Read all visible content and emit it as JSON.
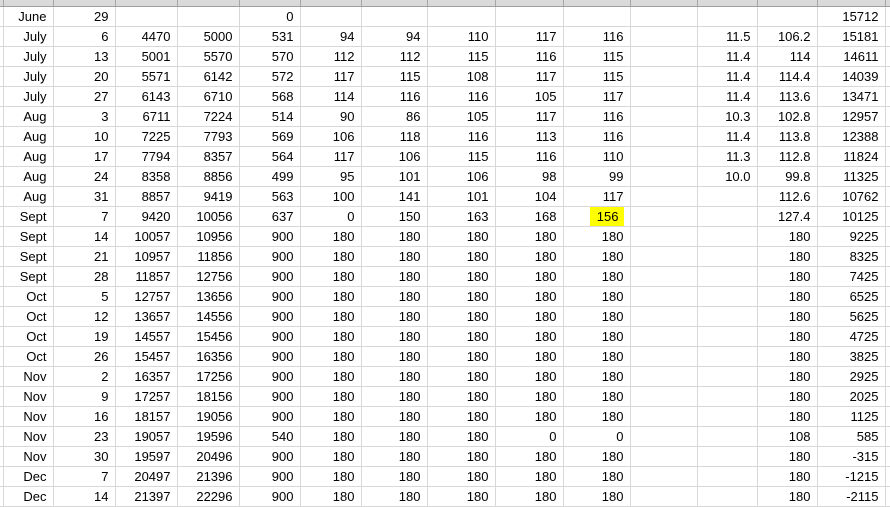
{
  "sheet": {
    "description": "spreadsheet-grid",
    "colors": {
      "background": "#ffffff",
      "gridline": "#d8d8d8",
      "text": "#000000",
      "highlight_fill": "#ffff00",
      "top_strip_fill": "#dadada",
      "top_strip_border": "#9e9e9e"
    },
    "highlight": {
      "row": 10,
      "col": 9,
      "value": "156"
    },
    "rows": [
      [
        "June",
        "29",
        "",
        "",
        "0",
        "",
        "",
        "",
        "",
        "",
        "",
        "",
        "",
        "15712"
      ],
      [
        "July",
        "6",
        "4470",
        "5000",
        "531",
        "94",
        "94",
        "110",
        "117",
        "116",
        "",
        "11.5",
        "106.2",
        "15181"
      ],
      [
        "July",
        "13",
        "5001",
        "5570",
        "570",
        "112",
        "112",
        "115",
        "116",
        "115",
        "",
        "11.4",
        "114",
        "14611"
      ],
      [
        "July",
        "20",
        "5571",
        "6142",
        "572",
        "117",
        "115",
        "108",
        "117",
        "115",
        "",
        "11.4",
        "114.4",
        "14039"
      ],
      [
        "July",
        "27",
        "6143",
        "6710",
        "568",
        "114",
        "116",
        "116",
        "105",
        "117",
        "",
        "11.4",
        "113.6",
        "13471"
      ],
      [
        "Aug",
        "3",
        "6711",
        "7224",
        "514",
        "90",
        "86",
        "105",
        "117",
        "116",
        "",
        "10.3",
        "102.8",
        "12957"
      ],
      [
        "Aug",
        "10",
        "7225",
        "7793",
        "569",
        "106",
        "118",
        "116",
        "113",
        "116",
        "",
        "11.4",
        "113.8",
        "12388"
      ],
      [
        "Aug",
        "17",
        "7794",
        "8357",
        "564",
        "117",
        "106",
        "115",
        "116",
        "110",
        "",
        "11.3",
        "112.8",
        "11824"
      ],
      [
        "Aug",
        "24",
        "8358",
        "8856",
        "499",
        "95",
        "101",
        "106",
        "98",
        "99",
        "",
        "10.0",
        "99.8",
        "11325"
      ],
      [
        "Aug",
        "31",
        "8857",
        "9419",
        "563",
        "100",
        "141",
        "101",
        "104",
        "117",
        "",
        "",
        "112.6",
        "10762"
      ],
      [
        "Sept",
        "7",
        "9420",
        "10056",
        "637",
        "0",
        "150",
        "163",
        "168",
        "156",
        "",
        "",
        "127.4",
        "10125"
      ],
      [
        "Sept",
        "14",
        "10057",
        "10956",
        "900",
        "180",
        "180",
        "180",
        "180",
        "180",
        "",
        "",
        "180",
        "9225"
      ],
      [
        "Sept",
        "21",
        "10957",
        "11856",
        "900",
        "180",
        "180",
        "180",
        "180",
        "180",
        "",
        "",
        "180",
        "8325"
      ],
      [
        "Sept",
        "28",
        "11857",
        "12756",
        "900",
        "180",
        "180",
        "180",
        "180",
        "180",
        "",
        "",
        "180",
        "7425"
      ],
      [
        "Oct",
        "5",
        "12757",
        "13656",
        "900",
        "180",
        "180",
        "180",
        "180",
        "180",
        "",
        "",
        "180",
        "6525"
      ],
      [
        "Oct",
        "12",
        "13657",
        "14556",
        "900",
        "180",
        "180",
        "180",
        "180",
        "180",
        "",
        "",
        "180",
        "5625"
      ],
      [
        "Oct",
        "19",
        "14557",
        "15456",
        "900",
        "180",
        "180",
        "180",
        "180",
        "180",
        "",
        "",
        "180",
        "4725"
      ],
      [
        "Oct",
        "26",
        "15457",
        "16356",
        "900",
        "180",
        "180",
        "180",
        "180",
        "180",
        "",
        "",
        "180",
        "3825"
      ],
      [
        "Nov",
        "2",
        "16357",
        "17256",
        "900",
        "180",
        "180",
        "180",
        "180",
        "180",
        "",
        "",
        "180",
        "2925"
      ],
      [
        "Nov",
        "9",
        "17257",
        "18156",
        "900",
        "180",
        "180",
        "180",
        "180",
        "180",
        "",
        "",
        "180",
        "2025"
      ],
      [
        "Nov",
        "16",
        "18157",
        "19056",
        "900",
        "180",
        "180",
        "180",
        "180",
        "180",
        "",
        "",
        "180",
        "1125"
      ],
      [
        "Nov",
        "23",
        "19057",
        "19596",
        "540",
        "180",
        "180",
        "180",
        "0",
        "0",
        "",
        "",
        "108",
        "585"
      ],
      [
        "Nov",
        "30",
        "19597",
        "20496",
        "900",
        "180",
        "180",
        "180",
        "180",
        "180",
        "",
        "",
        "180",
        "-315"
      ],
      [
        "Dec",
        "7",
        "20497",
        "21396",
        "900",
        "180",
        "180",
        "180",
        "180",
        "180",
        "",
        "",
        "180",
        "-1215"
      ],
      [
        "Dec",
        "14",
        "21397",
        "22296",
        "900",
        "180",
        "180",
        "180",
        "180",
        "180",
        "",
        "",
        "180",
        "-2115"
      ]
    ]
  }
}
